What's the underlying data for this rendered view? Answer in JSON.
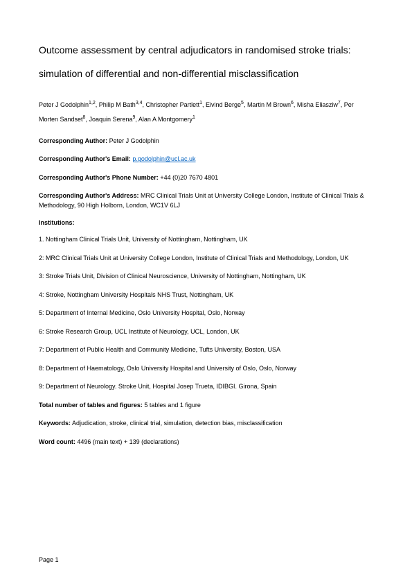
{
  "title": "Outcome assessment by central adjudicators in randomised stroke trials: simulation of differential and non-differential misclassification",
  "authors_html": "Peter J Godolphin<sup>1,2</sup>, Philip M Bath<sup>3,4</sup>, Christopher Partlett<sup>1</sup>, Eivind Berge<sup>5</sup>, Martin M Brown<sup>6</sup>, Misha Eliasziw<sup>7</sup>, Per Morten Sandset<sup>8</sup>, Joaquin Serena<sup>9</sup>, Alan A Montgomery<sup>1</sup>",
  "corresponding_author": {
    "label": "Corresponding Author:",
    "value": "Peter J Godolphin"
  },
  "corresponding_email": {
    "label": "Corresponding Author's Email:",
    "value": "p.godolphin@ucl.ac.uk"
  },
  "corresponding_phone": {
    "label": "Corresponding Author's Phone Number:",
    "value": "+44 (0)20 7670 4801"
  },
  "corresponding_address": {
    "label": "Corresponding Author's Address:",
    "value": "MRC Clinical Trials Unit at University College London, Institute of Clinical Trials & Methodology, 90 High Holborn, London, WC1V 6LJ"
  },
  "institutions_label": "Institutions:",
  "institutions": [
    "1. Nottingham Clinical Trials Unit, University of Nottingham, Nottingham, UK",
    "2: MRC Clinical Trials Unit at University College London, Institute of Clinical Trials and Methodology, London, UK",
    "3: Stroke Trials Unit, Division of Clinical Neuroscience, University of Nottingham, Nottingham, UK",
    "4: Stroke, Nottingham University Hospitals NHS Trust, Nottingham, UK",
    "5: Department of Internal Medicine, Oslo University Hospital, Oslo, Norway",
    "6: Stroke Research Group, UCL Institute of Neurology, UCL, London, UK",
    "7: Department of Public Health and Community Medicine, Tufts University, Boston, USA",
    "8: Department of Haematology, Oslo University Hospital and University of Oslo, Oslo, Norway",
    "9: Department of Neurology. Stroke Unit, Hospital Josep Trueta, IDIBGI. Girona, Spain"
  ],
  "tables_figures": {
    "label": "Total number of tables and figures:",
    "value": "5 tables and 1 figure"
  },
  "keywords": {
    "label": "Keywords:",
    "value": "Adjudication, stroke, clinical trial, simulation, detection bias, misclassification"
  },
  "word_count": {
    "label": "Word count:",
    "value": "4496 (main text) + 139 (declarations)"
  },
  "page_number": "Page 1"
}
